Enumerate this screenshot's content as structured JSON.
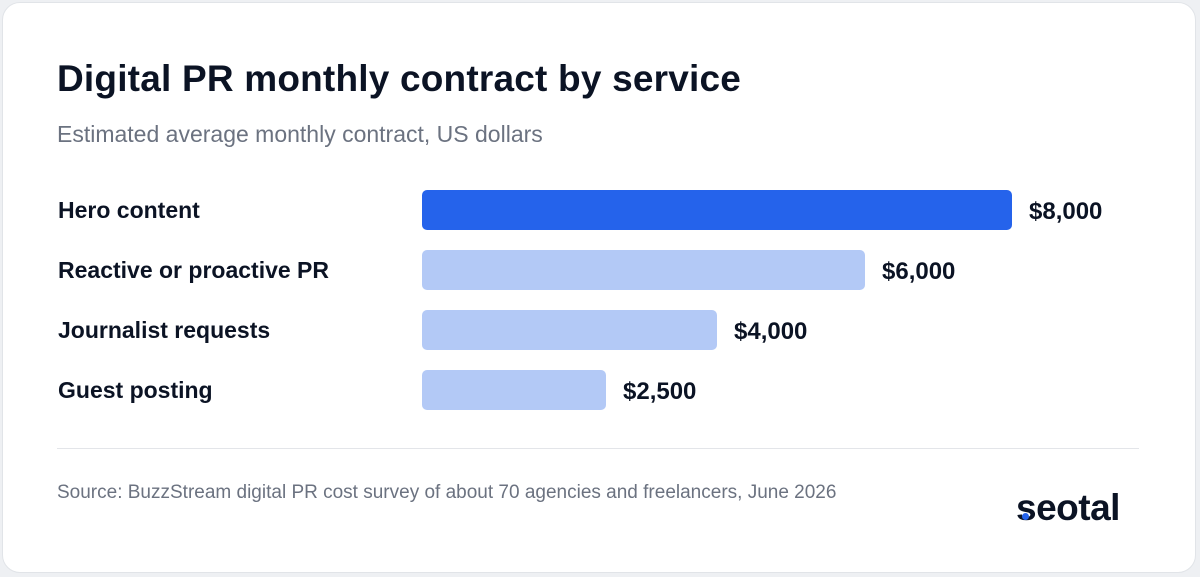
{
  "title": "Digital PR monthly contract by service",
  "subtitle": "Estimated average monthly contract, US dollars",
  "chart_data": {
    "type": "bar",
    "orientation": "horizontal",
    "categories": [
      "Hero content",
      "Reactive or proactive PR",
      "Journalist requests",
      "Guest posting"
    ],
    "values": [
      8000,
      6000,
      4000,
      2500
    ],
    "value_labels": [
      "$8,000",
      "$6,000",
      "$4,000",
      "$2,500"
    ],
    "xlim": [
      0,
      8000
    ],
    "grid": false,
    "legend": "none",
    "highlight_index": 0,
    "colors": {
      "highlight": "#2563eb",
      "default": "#b3c9f6"
    }
  },
  "source": "Source: BuzzStream digital PR cost survey of about 70 agencies and freelancers, June 2026",
  "logo": "seotal",
  "colors": {
    "title": "#0b1324",
    "muted": "#6b7280",
    "accent": "#2563eb"
  }
}
